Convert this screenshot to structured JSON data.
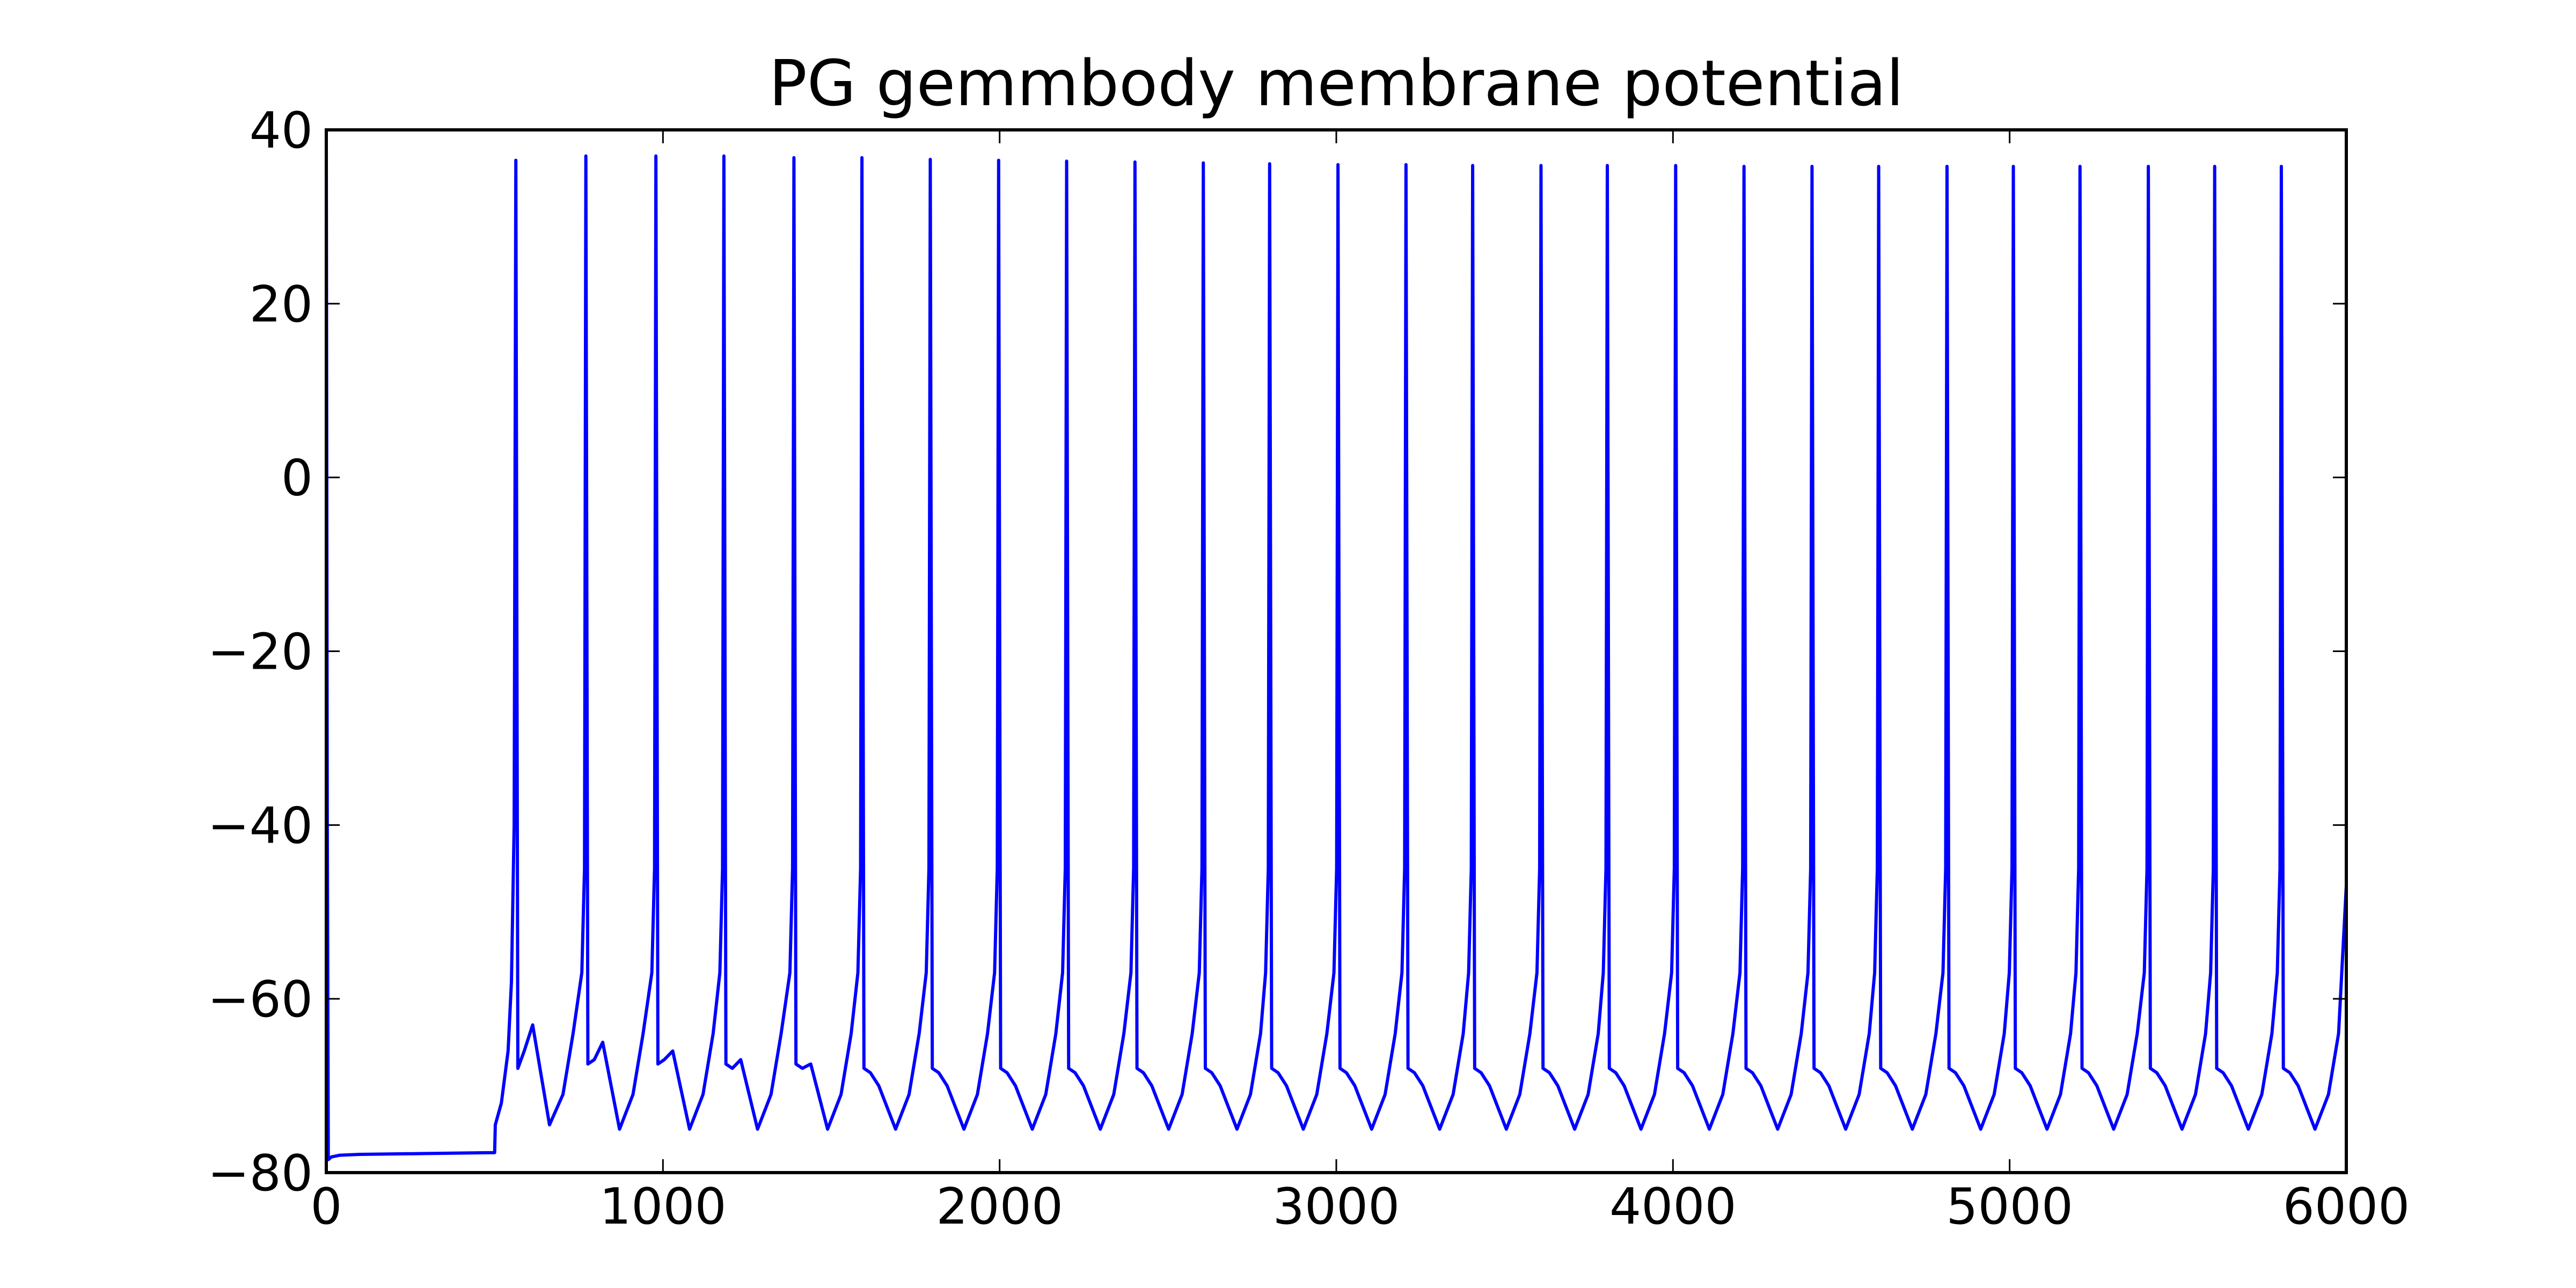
{
  "chart_data": {
    "type": "line",
    "title": "PG gemmbody membrane potential",
    "xlim": [
      0,
      6000
    ],
    "ylim": [
      -80,
      40
    ],
    "xticks": [
      0,
      1000,
      2000,
      3000,
      4000,
      5000,
      6000
    ],
    "yticks": [
      {
        "value": -80,
        "label": "−80"
      },
      {
        "value": -60,
        "label": "−60"
      },
      {
        "value": -40,
        "label": "−40"
      },
      {
        "value": -20,
        "label": "−20"
      },
      0,
      20,
      40
    ],
    "grid": false,
    "series": [
      {
        "color": "#0000ff",
        "x": [
          0,
          3,
          6,
          15,
          40,
          100,
          300,
          500,
          502,
          520,
          540,
          550,
          558,
          563,
          569,
          588,
          613,
          663,
          703,
          733,
          759,
          767,
          771,
          777,
          796,
          821,
          871,
          911,
          941,
          967,
          975,
          979,
          985,
          1004,
          1029,
          1079,
          1119,
          1149,
          1169,
          1177,
          1181,
          1187,
          1206,
          1231,
          1281,
          1321,
          1351,
          1377,
          1385,
          1389,
          1395,
          1414,
          1439,
          1489,
          1529,
          1559,
          1579,
          1587,
          1591,
          1597,
          1616,
          1641,
          1691,
          1731,
          1761,
          1782,
          1790,
          1794,
          1800,
          1819,
          1844,
          1894,
          1934,
          1964,
          1985,
          1993,
          1997,
          2003,
          2022,
          2047,
          2097,
          2137,
          2167,
          2187,
          2195,
          2199,
          2205,
          2224,
          2249,
          2299,
          2339,
          2369,
          2390,
          2398,
          2402,
          2408,
          2427,
          2452,
          2502,
          2542,
          2572,
          2593,
          2601,
          2605,
          2611,
          2630,
          2655,
          2705,
          2745,
          2775,
          2790,
          2798,
          2802,
          2808,
          2827,
          2852,
          2902,
          2942,
          2972,
          2993,
          3001,
          3005,
          3011,
          3030,
          3055,
          3105,
          3145,
          3175,
          3195,
          3203,
          3207,
          3213,
          3232,
          3257,
          3307,
          3347,
          3377,
          3393,
          3401,
          3405,
          3411,
          3430,
          3455,
          3505,
          3545,
          3575,
          3596,
          3604,
          3608,
          3614,
          3633,
          3658,
          3708,
          3748,
          3778,
          3793,
          3801,
          3805,
          3811,
          3830,
          3855,
          3905,
          3945,
          3975,
          3996,
          4004,
          4008,
          4014,
          4033,
          4058,
          4108,
          4148,
          4178,
          4199,
          4207,
          4211,
          4217,
          4236,
          4261,
          4311,
          4351,
          4381,
          4401,
          4409,
          4413,
          4419,
          4438,
          4463,
          4513,
          4553,
          4583,
          4599,
          4607,
          4611,
          4617,
          4636,
          4661,
          4711,
          4751,
          4781,
          4802,
          4810,
          4814,
          4820,
          4839,
          4864,
          4914,
          4954,
          4984,
          4999,
          5007,
          5011,
          5017,
          5036,
          5061,
          5111,
          5151,
          5181,
          5197,
          5205,
          5209,
          5215,
          5234,
          5259,
          5309,
          5349,
          5379,
          5400,
          5408,
          5412,
          5418,
          5437,
          5462,
          5512,
          5552,
          5582,
          5597,
          5605,
          5609,
          5615,
          5634,
          5659,
          5709,
          5749,
          5779,
          5795,
          5803,
          5807,
          5813,
          5832,
          5857,
          5907,
          5947,
          5977,
          6000
        ],
        "values": [
          38,
          -40,
          -78.5,
          -78.2,
          -78,
          -77.9,
          -77.8,
          -77.7,
          -74.5,
          -72,
          -66,
          -58,
          -40,
          36.5,
          -68,
          -66,
          -63,
          -74.5,
          -71,
          -64,
          -57,
          -45,
          37,
          -67.5,
          -67,
          -65,
          -75,
          -71,
          -64,
          -57,
          -45,
          37,
          -67.5,
          -67,
          -66,
          -75,
          -71,
          -64,
          -57,
          -45,
          37,
          -67.5,
          -68,
          -67,
          -75,
          -71,
          -64,
          -57,
          -45,
          36.8,
          -67.5,
          -68,
          -67.5,
          -75,
          -71,
          -64,
          -57,
          -45,
          36.8,
          -68,
          -68.5,
          -70,
          -75,
          -71,
          -64,
          -57,
          -45,
          36.6,
          -68,
          -68.5,
          -70,
          -75,
          -71,
          -64,
          -57,
          -45,
          36.5,
          -68,
          -68.5,
          -70,
          -75,
          -71,
          -64,
          -57,
          -45,
          36.4,
          -68,
          -68.5,
          -70,
          -75,
          -71,
          -64,
          -57,
          -45,
          36.3,
          -68,
          -68.5,
          -70,
          -75,
          -71,
          -64,
          -57,
          -45,
          36.2,
          -68,
          -68.5,
          -70,
          -75,
          -71,
          -64,
          -57,
          -45,
          36.1,
          -68,
          -68.5,
          -70,
          -75,
          -71,
          -64,
          -57,
          -45,
          36,
          -68,
          -68.5,
          -70,
          -75,
          -71,
          -64,
          -57,
          -45,
          36,
          -68,
          -68.5,
          -70,
          -75,
          -71,
          -64,
          -57,
          -45,
          35.9,
          -68,
          -68.5,
          -70,
          -75,
          -71,
          -64,
          -57,
          -45,
          35.9,
          -68,
          -68.5,
          -70,
          -75,
          -71,
          -64,
          -57,
          -45,
          35.9,
          -68,
          -68.5,
          -70,
          -75,
          -71,
          -64,
          -57,
          -45,
          35.9,
          -68,
          -68.5,
          -70,
          -75,
          -71,
          -64,
          -57,
          -45,
          35.8,
          -68,
          -68.5,
          -70,
          -75,
          -71,
          -64,
          -57,
          -45,
          35.8,
          -68,
          -68.5,
          -70,
          -75,
          -71,
          -64,
          -57,
          -45,
          35.8,
          -68,
          -68.5,
          -70,
          -75,
          -71,
          -64,
          -57,
          -45,
          35.8,
          -68,
          -68.5,
          -70,
          -75,
          -71,
          -64,
          -57,
          -45,
          35.8,
          -68,
          -68.5,
          -70,
          -75,
          -71,
          -64,
          -57,
          -45,
          35.8,
          -68,
          -68.5,
          -70,
          -75,
          -71,
          -64,
          -57,
          -45,
          35.8,
          -68,
          -68.5,
          -70,
          -75,
          -71,
          -64,
          -57,
          -45,
          35.8,
          -68,
          -68.5,
          -70,
          -75,
          -71,
          -64,
          -57,
          -45,
          35.8,
          -68,
          -68.5,
          -70,
          -75,
          -71,
          -64,
          -47
        ]
      }
    ]
  }
}
